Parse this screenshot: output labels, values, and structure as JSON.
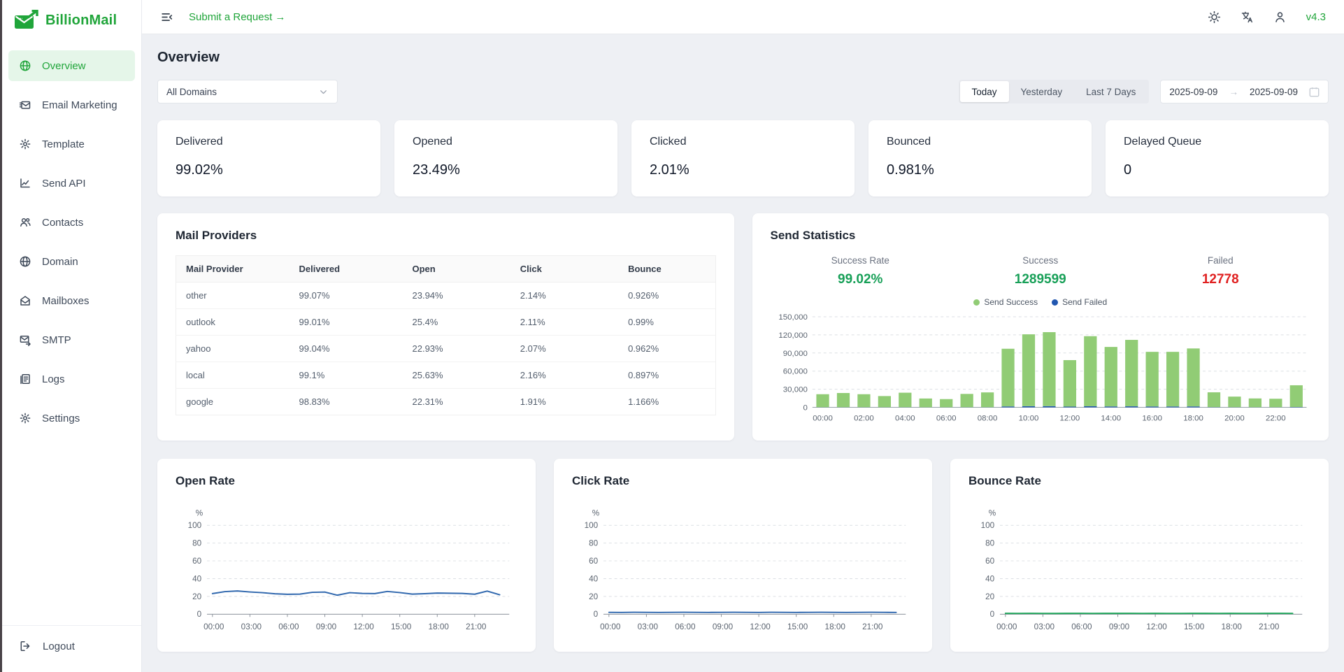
{
  "brand": {
    "name": "BillionMail",
    "version": "v4.3"
  },
  "topbar": {
    "submit_request": "Submit a Request →"
  },
  "sidebar": {
    "items": [
      {
        "label": "Overview",
        "icon": "globe-icon",
        "active": true
      },
      {
        "label": "Email Marketing",
        "icon": "envelope-list-icon",
        "active": false
      },
      {
        "label": "Template",
        "icon": "gear-icon",
        "active": false
      },
      {
        "label": "Send API",
        "icon": "chart-icon",
        "active": false
      },
      {
        "label": "Contacts",
        "icon": "people-icon",
        "active": false
      },
      {
        "label": "Domain",
        "icon": "globe-icon",
        "active": false
      },
      {
        "label": "Mailboxes",
        "icon": "open-envelope-icon",
        "active": false
      },
      {
        "label": "SMTP",
        "icon": "envelope-arrow-icon",
        "active": false
      },
      {
        "label": "Logs",
        "icon": "document-icon",
        "active": false
      },
      {
        "label": "Settings",
        "icon": "gear-icon",
        "active": false
      }
    ],
    "logout": "Logout"
  },
  "page": {
    "title": "Overview"
  },
  "filters": {
    "domain_select": "All Domains",
    "ranges": [
      "Today",
      "Yesterday",
      "Last 7 Days"
    ],
    "active_range": "Today",
    "date_from": "2025-09-09",
    "date_arrow": "→",
    "date_to": "2025-09-09"
  },
  "stat_cards": [
    {
      "label": "Delivered",
      "value": "99.02%"
    },
    {
      "label": "Opened",
      "value": "23.49%"
    },
    {
      "label": "Clicked",
      "value": "2.01%"
    },
    {
      "label": "Bounced",
      "value": "0.981%"
    },
    {
      "label": "Delayed Queue",
      "value": "0"
    }
  ],
  "providers": {
    "title": "Mail Providers",
    "columns": [
      "Mail Provider",
      "Delivered",
      "Open",
      "Click",
      "Bounce"
    ],
    "rows": [
      {
        "cells": [
          "other",
          "99.07%",
          "23.94%",
          "2.14%",
          "0.926%"
        ]
      },
      {
        "cells": [
          "outlook",
          "99.01%",
          "25.4%",
          "2.11%",
          "0.99%"
        ]
      },
      {
        "cells": [
          "yahoo",
          "99.04%",
          "22.93%",
          "2.07%",
          "0.962%"
        ]
      },
      {
        "cells": [
          "local",
          "99.1%",
          "25.63%",
          "2.16%",
          "0.897%"
        ]
      },
      {
        "cells": [
          "google",
          "98.83%",
          "22.31%",
          "1.91%",
          "1.166%"
        ]
      }
    ]
  },
  "send_stats": {
    "title": "Send Statistics",
    "metrics": [
      {
        "label": "Success Rate",
        "value": "99.02%",
        "color": "#18a058"
      },
      {
        "label": "Success",
        "value": "1289599",
        "color": "#18a058"
      },
      {
        "label": "Failed",
        "value": "12778",
        "color": "#e02020"
      }
    ]
  },
  "colors": {
    "brand_green": "#20a53a",
    "success_green": "#18a058",
    "failed_red": "#e02020",
    "bar_green": "#91cc75",
    "bar_blue": "#2257b0",
    "line_blue": "#2e66ad",
    "line_green": "#1ea75a"
  },
  "chart_data": [
    {
      "id": "send_statistics",
      "type": "bar",
      "stacked": true,
      "title": "Send Statistics",
      "legend": [
        "Send Success",
        "Send Failed"
      ],
      "legend_position": "top",
      "grid": true,
      "ylim": [
        0,
        150000
      ],
      "y_ticks": [
        0,
        30000,
        60000,
        90000,
        120000,
        150000
      ],
      "x_tick_every": 2,
      "categories": [
        "00:00",
        "01:00",
        "02:00",
        "03:00",
        "04:00",
        "05:00",
        "06:00",
        "07:00",
        "08:00",
        "09:00",
        "10:00",
        "11:00",
        "12:00",
        "13:00",
        "14:00",
        "15:00",
        "16:00",
        "17:00",
        "18:00",
        "19:00",
        "20:00",
        "21:00",
        "22:00",
        "23:00"
      ],
      "series": [
        {
          "name": "Send Success",
          "color": "#91cc75",
          "values": [
            21500,
            23500,
            21500,
            18500,
            24000,
            14500,
            13500,
            22000,
            24500,
            95500,
            119000,
            122500,
            77000,
            116000,
            98500,
            110000,
            90500,
            90500,
            96000,
            24500,
            17500,
            14500,
            14000,
            36000
          ]
        },
        {
          "name": "Send Failed",
          "color": "#2257b0",
          "values": [
            250,
            250,
            250,
            200,
            250,
            150,
            150,
            250,
            250,
            1500,
            1900,
            2000,
            1200,
            1800,
            1500,
            1700,
            1400,
            1400,
            1500,
            400,
            300,
            250,
            250,
            550
          ]
        }
      ]
    },
    {
      "id": "open_rate",
      "type": "line",
      "title": "Open Rate",
      "color": "#2e66ad",
      "ylabel": "%",
      "ylim": [
        0,
        100
      ],
      "y_ticks": [
        0,
        20,
        40,
        60,
        80,
        100
      ],
      "x_tick_every": 3,
      "grid": true,
      "categories": [
        "00:00",
        "01:00",
        "02:00",
        "03:00",
        "04:00",
        "05:00",
        "06:00",
        "07:00",
        "08:00",
        "09:00",
        "10:00",
        "11:00",
        "12:00",
        "13:00",
        "14:00",
        "15:00",
        "16:00",
        "17:00",
        "18:00",
        "19:00",
        "20:00",
        "21:00",
        "22:00",
        "23:00"
      ],
      "values": [
        23.2,
        25.4,
        26.1,
        25.0,
        24.2,
        23.0,
        22.4,
        22.6,
        24.6,
        24.9,
        21.4,
        24.2,
        23.4,
        23.2,
        25.6,
        24.3,
        22.6,
        23.1,
        23.8,
        23.6,
        23.4,
        22.5,
        26.0,
        21.9
      ]
    },
    {
      "id": "click_rate",
      "type": "line",
      "title": "Click Rate",
      "color": "#2e66ad",
      "ylabel": "%",
      "ylim": [
        0,
        100
      ],
      "y_ticks": [
        0,
        20,
        40,
        60,
        80,
        100
      ],
      "x_tick_every": 3,
      "grid": true,
      "categories": [
        "00:00",
        "01:00",
        "02:00",
        "03:00",
        "04:00",
        "05:00",
        "06:00",
        "07:00",
        "08:00",
        "09:00",
        "10:00",
        "11:00",
        "12:00",
        "13:00",
        "14:00",
        "15:00",
        "16:00",
        "17:00",
        "18:00",
        "19:00",
        "20:00",
        "21:00",
        "22:00",
        "23:00"
      ],
      "values": [
        2.1,
        2.0,
        2.2,
        2.1,
        2.0,
        2.1,
        2.2,
        2.1,
        2.0,
        2.1,
        2.2,
        2.1,
        2.0,
        2.2,
        2.1,
        2.0,
        2.1,
        2.2,
        2.1,
        2.0,
        2.1,
        2.2,
        2.1,
        2.0
      ]
    },
    {
      "id": "bounce_rate",
      "type": "line",
      "title": "Bounce Rate",
      "color": "#1ea75a",
      "ylabel": "%",
      "ylim": [
        0,
        100
      ],
      "y_ticks": [
        0,
        20,
        40,
        60,
        80,
        100
      ],
      "x_tick_every": 3,
      "grid": true,
      "categories": [
        "00:00",
        "01:00",
        "02:00",
        "03:00",
        "04:00",
        "05:00",
        "06:00",
        "07:00",
        "08:00",
        "09:00",
        "10:00",
        "11:00",
        "12:00",
        "13:00",
        "14:00",
        "15:00",
        "16:00",
        "17:00",
        "18:00",
        "19:00",
        "20:00",
        "21:00",
        "22:00",
        "23:00"
      ],
      "values": [
        0.95,
        0.9,
        1.0,
        0.92,
        0.88,
        0.95,
        1.0,
        0.9,
        0.93,
        0.96,
        1.0,
        0.9,
        0.95,
        0.92,
        0.9,
        1.0,
        0.94,
        0.9,
        0.96,
        0.92,
        0.9,
        0.95,
        1.0,
        0.9
      ]
    }
  ]
}
